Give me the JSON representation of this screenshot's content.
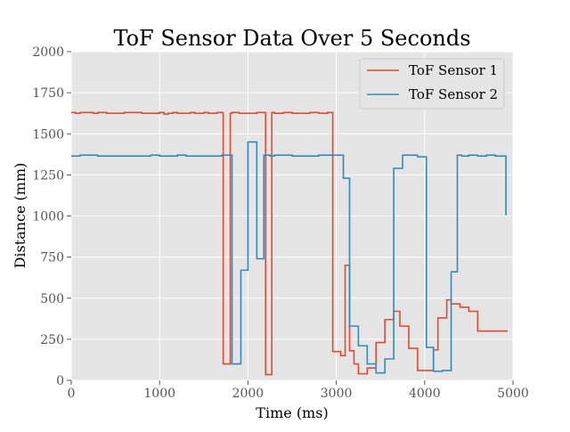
{
  "chart_data": {
    "type": "line",
    "title": "ToF Sensor Data Over 5 Seconds",
    "xlabel": "Time (ms)",
    "ylabel": "Distance (mm)",
    "xlim": [
      0,
      5000
    ],
    "ylim": [
      0,
      2000
    ],
    "xticks": [
      0,
      1000,
      2000,
      3000,
      4000,
      5000
    ],
    "yticks": [
      0,
      250,
      500,
      750,
      1000,
      1250,
      1500,
      1750,
      2000
    ],
    "grid": true,
    "legend_position": "top-right",
    "step": "post",
    "series": [
      {
        "name": "ToF Sensor 1",
        "color": "#E24A33",
        "x": [
          0,
          50,
          100,
          200,
          250,
          300,
          400,
          500,
          600,
          700,
          800,
          900,
          1000,
          1050,
          1100,
          1150,
          1200,
          1250,
          1300,
          1350,
          1400,
          1450,
          1500,
          1550,
          1600,
          1650,
          1700,
          1720,
          1800,
          1820,
          1900,
          2000,
          2100,
          2200,
          2220,
          2270,
          2300,
          2400,
          2500,
          2600,
          2700,
          2800,
          2900,
          2960,
          3050,
          3100,
          3150,
          3200,
          3250,
          3350,
          3450,
          3550,
          3650,
          3720,
          3820,
          3920,
          4020,
          4100,
          4150,
          4250,
          4300,
          4400,
          4500,
          4600,
          4700,
          4800,
          4900,
          4940
        ],
        "y": [
          1630,
          1625,
          1630,
          1630,
          1625,
          1630,
          1625,
          1625,
          1630,
          1630,
          1625,
          1625,
          1630,
          1620,
          1625,
          1630,
          1625,
          1625,
          1625,
          1630,
          1625,
          1625,
          1630,
          1625,
          1625,
          1630,
          1630,
          100,
          1625,
          1630,
          1625,
          1625,
          1630,
          35,
          35,
          1630,
          1625,
          1630,
          1625,
          1625,
          1630,
          1625,
          1630,
          175,
          150,
          700,
          180,
          100,
          40,
          75,
          230,
          370,
          420,
          330,
          195,
          60,
          60,
          185,
          380,
          490,
          465,
          445,
          420,
          300,
          300,
          300,
          300,
          300
        ],
        "y_note_removed": false
      },
      {
        "name": "ToF Sensor 2",
        "color": "#348ABD",
        "x": [
          0,
          100,
          200,
          300,
          400,
          500,
          600,
          700,
          800,
          900,
          1000,
          1100,
          1200,
          1300,
          1400,
          1500,
          1600,
          1700,
          1800,
          1820,
          1920,
          2000,
          2100,
          2180,
          2250,
          2300,
          2400,
          2500,
          2600,
          2700,
          2800,
          2900,
          3000,
          3080,
          3150,
          3250,
          3350,
          3450,
          3550,
          3650,
          3750,
          3850,
          3920,
          4020,
          4100,
          4200,
          4300,
          4370,
          4420,
          4500,
          4600,
          4700,
          4800,
          4920
        ],
        "y": [
          1365,
          1370,
          1370,
          1365,
          1365,
          1365,
          1365,
          1365,
          1365,
          1370,
          1365,
          1365,
          1370,
          1365,
          1365,
          1365,
          1365,
          1370,
          1370,
          100,
          670,
          1450,
          740,
          1370,
          1365,
          1370,
          1370,
          1365,
          1365,
          1365,
          1370,
          1370,
          1370,
          1230,
          330,
          210,
          100,
          45,
          130,
          1290,
          1370,
          1370,
          1360,
          200,
          55,
          60,
          660,
          1370,
          1365,
          1370,
          1365,
          1370,
          1365,
          1005
        ]
      }
    ]
  }
}
